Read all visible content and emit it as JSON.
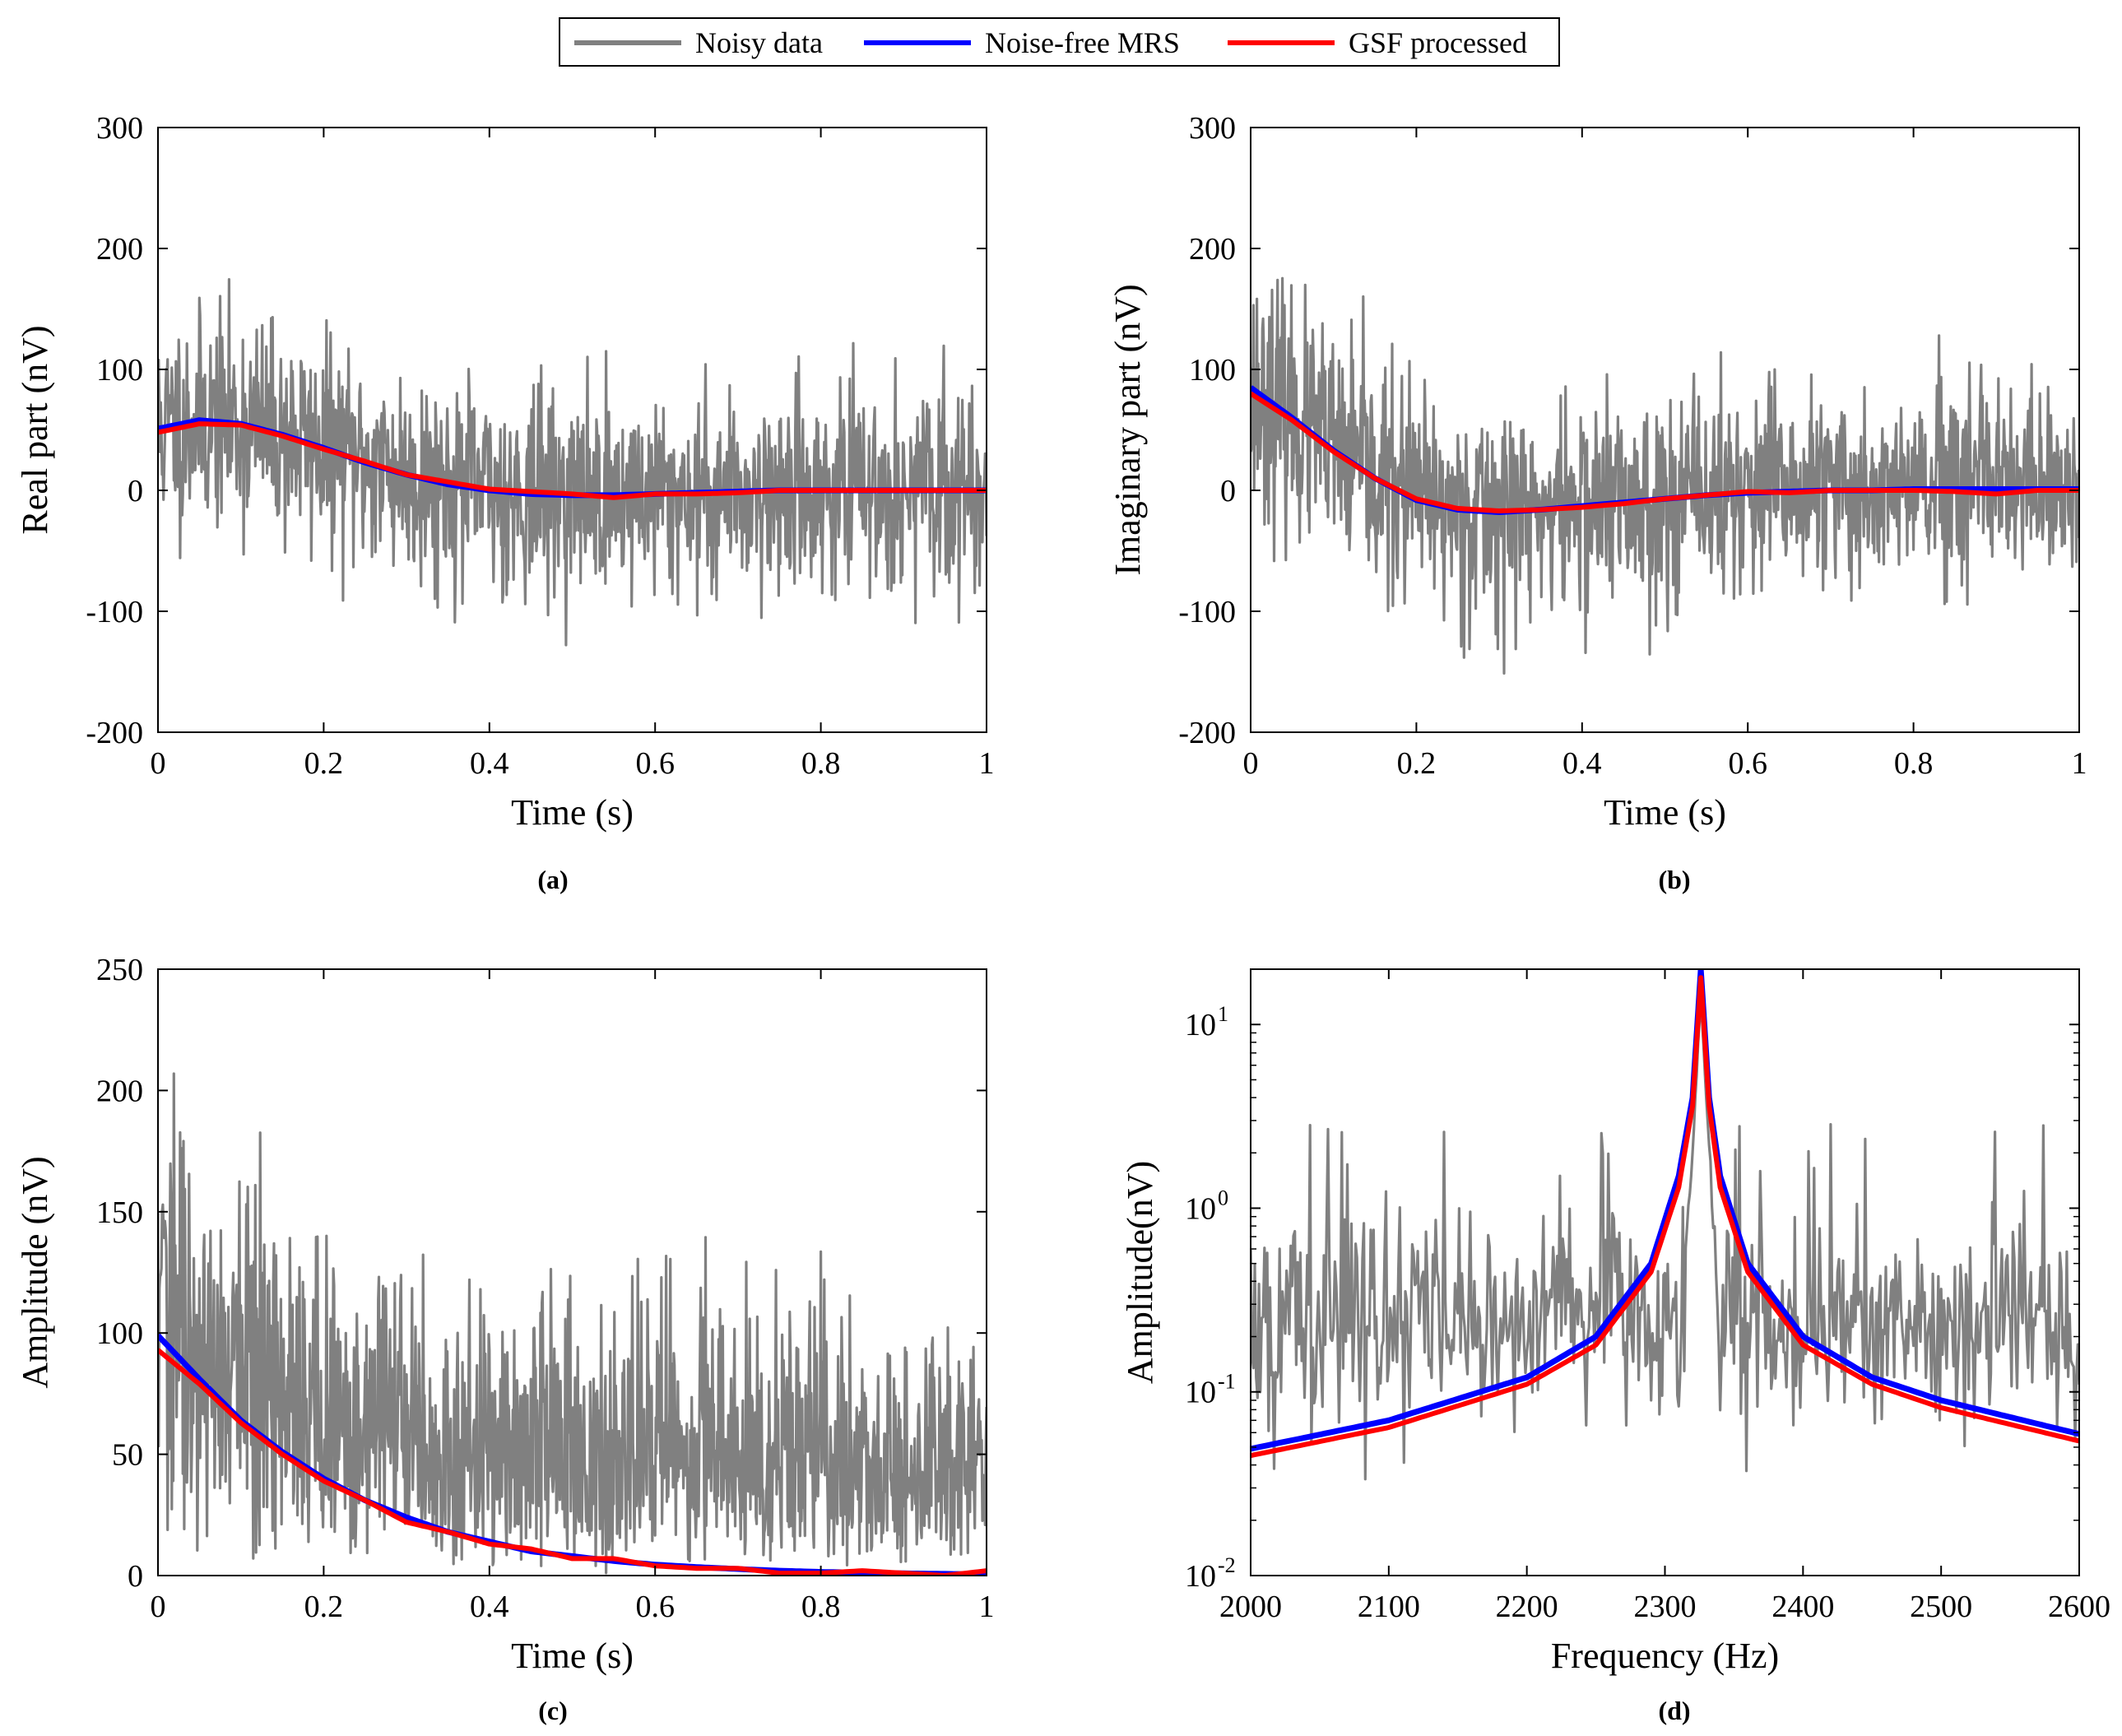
{
  "legend": {
    "placement": "top-center",
    "items": [
      {
        "label": "Noisy data",
        "color": "#808080"
      },
      {
        "label": "Noise-free MRS",
        "color": "#0000ff"
      },
      {
        "label": "GSF processed",
        "color": "#ff0000"
      }
    ]
  },
  "chart_data": [
    {
      "id": "a",
      "type": "line",
      "caption": "(a)",
      "xlabel": "Time (s)",
      "ylabel": "Real part (nV)",
      "xlim": [
        0,
        1
      ],
      "ylim": [
        -200,
        300
      ],
      "xticks": [
        0,
        0.2,
        0.4,
        0.6,
        0.8,
        1
      ],
      "xtick_labels": [
        "0",
        "0.2",
        "0.4",
        "0.6",
        "0.8",
        "1"
      ],
      "yticks": [
        -200,
        -100,
        0,
        100,
        200,
        300
      ],
      "ytick_labels": [
        "-200",
        "-100",
        "0",
        "100",
        "200",
        "300"
      ],
      "yscale": "linear",
      "series": [
        {
          "name": "Noisy data",
          "color": "#808080",
          "noise": {
            "amplitude_start": 55,
            "amplitude_end": 48,
            "seed": 11,
            "n": 1200
          }
        },
        {
          "name": "Noise-free MRS",
          "color": "#0000ff",
          "x": [
            0,
            0.05,
            0.1,
            0.15,
            0.2,
            0.25,
            0.3,
            0.35,
            0.4,
            0.45,
            0.5,
            0.55,
            0.6,
            0.65,
            0.7,
            0.75,
            0.8,
            0.85,
            0.9,
            0.95,
            1
          ],
          "y": [
            51,
            58,
            55,
            46,
            35,
            23,
            13,
            5,
            0,
            -3,
            -4,
            -4,
            -3,
            -2,
            -1,
            0,
            0,
            0,
            0,
            0,
            0
          ]
        },
        {
          "name": "GSF processed",
          "color": "#ff0000",
          "x": [
            0,
            0.05,
            0.1,
            0.15,
            0.2,
            0.25,
            0.3,
            0.35,
            0.4,
            0.45,
            0.5,
            0.55,
            0.6,
            0.65,
            0.7,
            0.75,
            0.8,
            0.85,
            0.9,
            0.95,
            1
          ],
          "y": [
            48,
            55,
            54,
            45,
            34,
            24,
            13,
            7,
            1,
            -1,
            -3,
            -6,
            -3,
            -3,
            -2,
            0,
            0,
            0,
            0,
            0,
            0
          ]
        }
      ]
    },
    {
      "id": "b",
      "type": "line",
      "caption": "(b)",
      "xlabel": "Time (s)",
      "ylabel": "Imaginary part (nV)",
      "xlim": [
        0,
        1
      ],
      "ylim": [
        -200,
        300
      ],
      "xticks": [
        0,
        0.2,
        0.4,
        0.6,
        0.8,
        1
      ],
      "xtick_labels": [
        "0",
        "0.2",
        "0.4",
        "0.6",
        "0.8",
        "1"
      ],
      "yticks": [
        -200,
        -100,
        0,
        100,
        200,
        300
      ],
      "ytick_labels": [
        "-200",
        "-100",
        "0",
        "100",
        "200",
        "300"
      ],
      "yscale": "linear",
      "series": [
        {
          "name": "Noisy data",
          "color": "#808080",
          "noise": {
            "amplitude_start": 60,
            "amplitude_end": 48,
            "seed": 23,
            "n": 1200
          }
        },
        {
          "name": "Noise-free MRS",
          "color": "#0000ff",
          "x": [
            0,
            0.05,
            0.1,
            0.15,
            0.2,
            0.25,
            0.3,
            0.35,
            0.4,
            0.45,
            0.5,
            0.55,
            0.6,
            0.65,
            0.7,
            0.75,
            0.8,
            0.85,
            0.9,
            0.95,
            1
          ],
          "y": [
            85,
            60,
            33,
            10,
            -8,
            -16,
            -18,
            -16,
            -13,
            -10,
            -7,
            -4,
            -2,
            -1,
            0,
            0,
            1,
            1,
            1,
            1,
            1
          ]
        },
        {
          "name": "GSF processed",
          "color": "#ff0000",
          "x": [
            0,
            0.05,
            0.1,
            0.15,
            0.2,
            0.25,
            0.3,
            0.35,
            0.4,
            0.45,
            0.5,
            0.55,
            0.6,
            0.65,
            0.7,
            0.75,
            0.8,
            0.85,
            0.9,
            0.95,
            1
          ],
          "y": [
            80,
            58,
            32,
            10,
            -7,
            -15,
            -17,
            -16,
            -14,
            -11,
            -7,
            -4,
            -1,
            -2,
            0,
            0,
            0,
            -1,
            -3,
            0,
            0
          ]
        }
      ]
    },
    {
      "id": "c",
      "type": "line",
      "caption": "(c)",
      "xlabel": "Time (s)",
      "ylabel": "Amplitude (nV)",
      "xlim": [
        0,
        1
      ],
      "ylim": [
        0,
        250
      ],
      "xticks": [
        0,
        0.2,
        0.4,
        0.6,
        0.8,
        1
      ],
      "xtick_labels": [
        "0",
        "0.2",
        "0.4",
        "0.6",
        "0.8",
        "1"
      ],
      "yticks": [
        0,
        50,
        100,
        150,
        200,
        250
      ],
      "ytick_labels": [
        "0",
        "50",
        "100",
        "150",
        "200",
        "250"
      ],
      "yscale": "linear",
      "series": [
        {
          "name": "Noisy data",
          "color": "#808080",
          "noise": {
            "amplitude_start": 62,
            "amplitude_end": 50,
            "seed": 37,
            "n": 1200,
            "magnitude": true
          }
        },
        {
          "name": "Noise-free MRS",
          "color": "#0000ff",
          "x": [
            0,
            0.05,
            0.1,
            0.15,
            0.2,
            0.25,
            0.3,
            0.35,
            0.4,
            0.45,
            0.5,
            0.55,
            0.6,
            0.65,
            0.7,
            0.75,
            0.8,
            0.85,
            0.9,
            0.95,
            1
          ],
          "y": [
            99,
            81,
            64,
            51,
            40,
            31,
            24,
            18,
            14,
            10,
            8,
            6,
            4.5,
            3.5,
            2.7,
            2,
            1.5,
            1.2,
            0.9,
            0.7,
            0.5
          ]
        },
        {
          "name": "GSF processed",
          "color": "#ff0000",
          "x": [
            0,
            0.05,
            0.1,
            0.15,
            0.2,
            0.25,
            0.3,
            0.35,
            0.4,
            0.45,
            0.5,
            0.55,
            0.6,
            0.65,
            0.7,
            0.75,
            0.8,
            0.85,
            0.9,
            0.95,
            1
          ],
          "y": [
            93,
            79,
            63,
            50,
            39,
            31,
            22,
            18,
            13,
            11,
            7,
            7,
            4,
            3,
            3,
            1,
            1,
            2,
            1,
            0,
            2
          ]
        }
      ]
    },
    {
      "id": "d",
      "type": "line",
      "caption": "(d)",
      "xlabel": "Frequency (Hz)",
      "ylabel": "Amplitude(nV)",
      "xlim": [
        2000,
        2600
      ],
      "ylim": [
        0.01,
        20
      ],
      "xticks": [
        2000,
        2100,
        2200,
        2300,
        2400,
        2500,
        2600
      ],
      "xtick_labels": [
        "2000",
        "2100",
        "2200",
        "2300",
        "2400",
        "2500",
        "2600"
      ],
      "yticks": [
        0.01,
        0.1,
        1,
        10
      ],
      "ytick_labels": [
        {
          "base": "10",
          "exp": "-2"
        },
        {
          "base": "10",
          "exp": "-1"
        },
        {
          "base": "10",
          "exp": "0"
        },
        {
          "base": "10",
          "exp": "1"
        }
      ],
      "yscale": "log",
      "series": [
        {
          "name": "Noisy data",
          "color": "#808080",
          "peak_hz": 2326,
          "noise": {
            "log10_center": -0.6,
            "log10_spread": 0.5,
            "spikes_to": 3,
            "seed": 51,
            "n": 600
          }
        },
        {
          "name": "Noise-free MRS",
          "color": "#0000ff",
          "x": [
            2000,
            2100,
            2200,
            2250,
            2290,
            2310,
            2320,
            2326,
            2332,
            2340,
            2360,
            2400,
            2450,
            2500,
            2600
          ],
          "y": [
            0.049,
            0.07,
            0.12,
            0.2,
            0.5,
            1.5,
            4,
            20,
            4,
            1.5,
            0.5,
            0.2,
            0.12,
            0.09,
            0.059
          ]
        },
        {
          "name": "GSF processed",
          "color": "#ff0000",
          "x": [
            2000,
            2100,
            2200,
            2250,
            2290,
            2310,
            2320,
            2326,
            2332,
            2340,
            2360,
            2400,
            2450,
            2500,
            2600
          ],
          "y": [
            0.045,
            0.064,
            0.11,
            0.18,
            0.45,
            1.3,
            3.6,
            18,
            3.6,
            1.3,
            0.45,
            0.18,
            0.11,
            0.082,
            0.054
          ]
        }
      ]
    }
  ]
}
